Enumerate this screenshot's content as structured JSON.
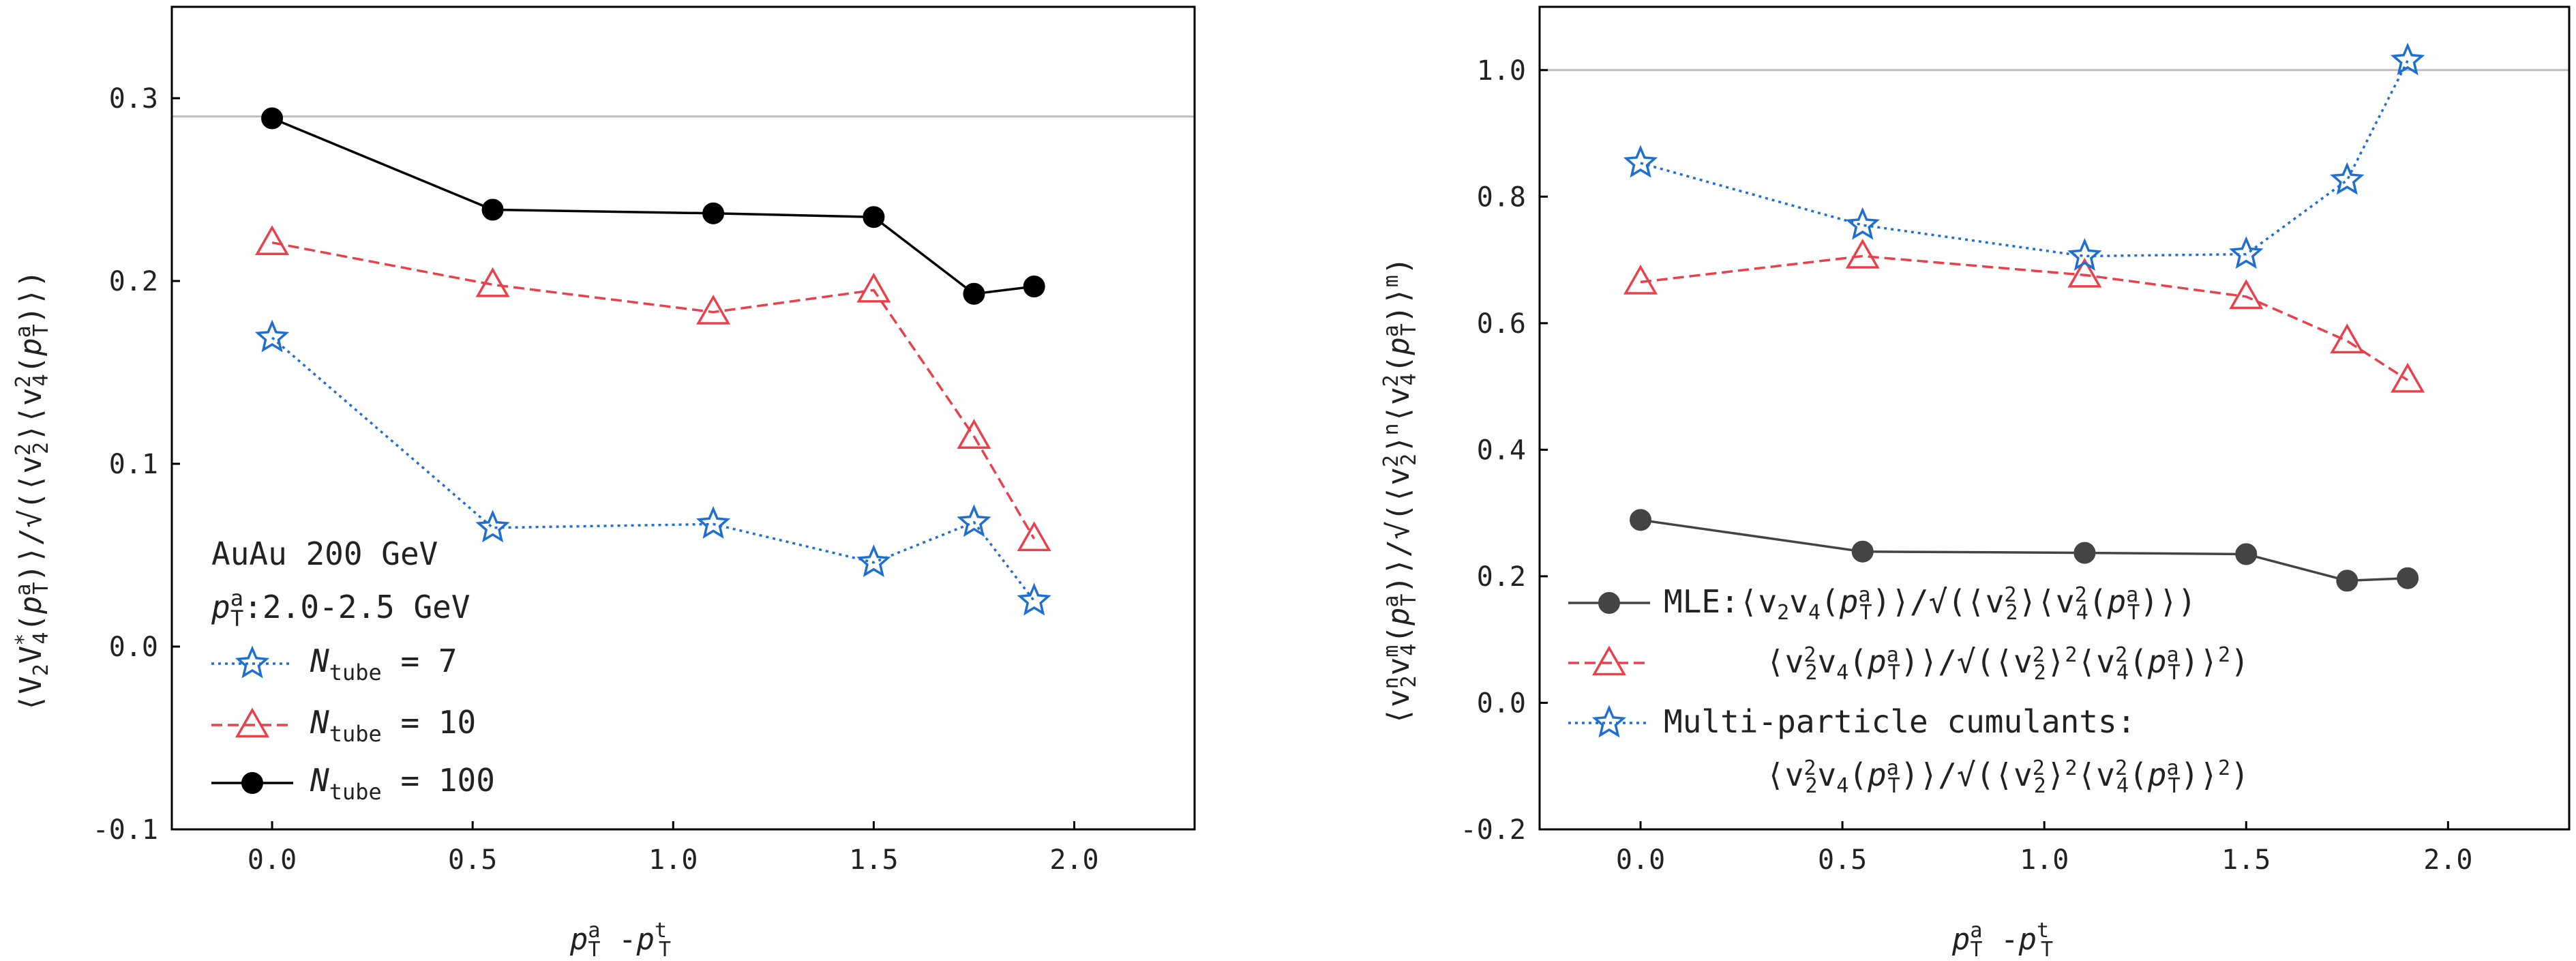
{
  "chart_data": [
    {
      "type": "line",
      "xlabel": "p_T^a - p_T^t",
      "ylabel": "⟨V₂V₄*(p_T^a)⟩/√(⟨v₂²⟩⟨v₄²(p_T^a)⟩)",
      "xlim": [
        -0.25,
        2.3
      ],
      "ylim": [
        -0.1,
        0.35
      ],
      "xticks": [
        0.0,
        0.5,
        1.0,
        1.5,
        2.0
      ],
      "xtick_labels": [
        "0.0",
        "0.5",
        "1.0",
        "1.5",
        "2.0"
      ],
      "yticks": [
        -0.1,
        0.0,
        0.1,
        0.2,
        0.3
      ],
      "ytick_labels": [
        "-0.1",
        "0.0",
        "0.1",
        "0.2",
        "0.3"
      ],
      "reference_line_y": 0.29,
      "legend_position": "lower-left",
      "annotation": {
        "line1": "AuAu 200 GeV",
        "line2": "p_T^a:2.0-2.5 GeV"
      },
      "x": [
        0.0,
        0.55,
        1.1,
        1.5,
        1.75,
        1.9
      ],
      "series": [
        {
          "name": "N_tube = 7",
          "name_main": "N",
          "name_sub": "tube",
          "name_rest": " = 7",
          "color": "#1f6fd1",
          "marker": "star",
          "dash": "dotted",
          "values": [
            0.169,
            0.065,
            0.067,
            0.046,
            0.068,
            0.025
          ]
        },
        {
          "name": "N_tube = 10",
          "name_main": "N",
          "name_sub": "tube",
          "name_rest": " = 10",
          "color": "#e8414b",
          "marker": "triangle",
          "dash": "dashed",
          "values": [
            0.221,
            0.198,
            0.183,
            0.195,
            0.115,
            0.059
          ]
        },
        {
          "name": "N_tube = 100",
          "name_main": "N",
          "name_sub": "tube",
          "name_rest": " = 100",
          "color": "#000000",
          "marker": "circle",
          "dash": "solid",
          "values": [
            0.289,
            0.239,
            0.237,
            0.235,
            0.193,
            0.197
          ]
        }
      ]
    },
    {
      "type": "line",
      "xlabel": "p_T^a - p_T^t",
      "ylabel": "⟨v₂ⁿv₄ᵐ(p_T^a)⟩/√(⟨v₂²⟩ⁿ⟨v₄²(p_T^a)⟩ᵐ)",
      "xlim": [
        -0.25,
        2.3
      ],
      "ylim": [
        -0.2,
        1.1
      ],
      "xticks": [
        0.0,
        0.5,
        1.0,
        1.5,
        2.0
      ],
      "xtick_labels": [
        "0.0",
        "0.5",
        "1.0",
        "1.5",
        "2.0"
      ],
      "yticks": [
        -0.2,
        0.0,
        0.2,
        0.4,
        0.6,
        0.8,
        1.0
      ],
      "ytick_labels": [
        "-0.2",
        "0.0",
        "0.2",
        "0.4",
        "0.6",
        "0.8",
        "1.0"
      ],
      "reference_line_y": 1.0,
      "legend_position": "lower-left",
      "x": [
        0.0,
        0.55,
        1.1,
        1.5,
        1.75,
        1.9
      ],
      "series": [
        {
          "name": "MLE:⟨v₂v₄(p_T^a)⟩/√(⟨v₂²⟩⟨v₄²(p_T^a)⟩)",
          "color": "#444444",
          "marker": "circle",
          "dash": "solid",
          "values": [
            0.289,
            0.239,
            0.237,
            0.235,
            0.193,
            0.197
          ]
        },
        {
          "name": "⟨v₂²v₄(p_T^a)⟩/√(⟨v₂²⟩²⟨v₄²(p_T^a)⟩²)",
          "color": "#e8414b",
          "marker": "triangle",
          "dash": "dashed",
          "values": [
            0.665,
            0.706,
            0.676,
            0.642,
            0.572,
            0.51
          ]
        },
        {
          "name": "Multi-particle cumulants:",
          "name_line2": "⟨v₂²v₄(p_T^a)⟩/√(⟨v₂²⟩²⟨v₄²(p_T^a)⟩²)",
          "color": "#1f6fd1",
          "marker": "star",
          "dash": "dotted",
          "values": [
            0.853,
            0.755,
            0.706,
            0.709,
            0.826,
            1.015
          ]
        }
      ]
    }
  ]
}
